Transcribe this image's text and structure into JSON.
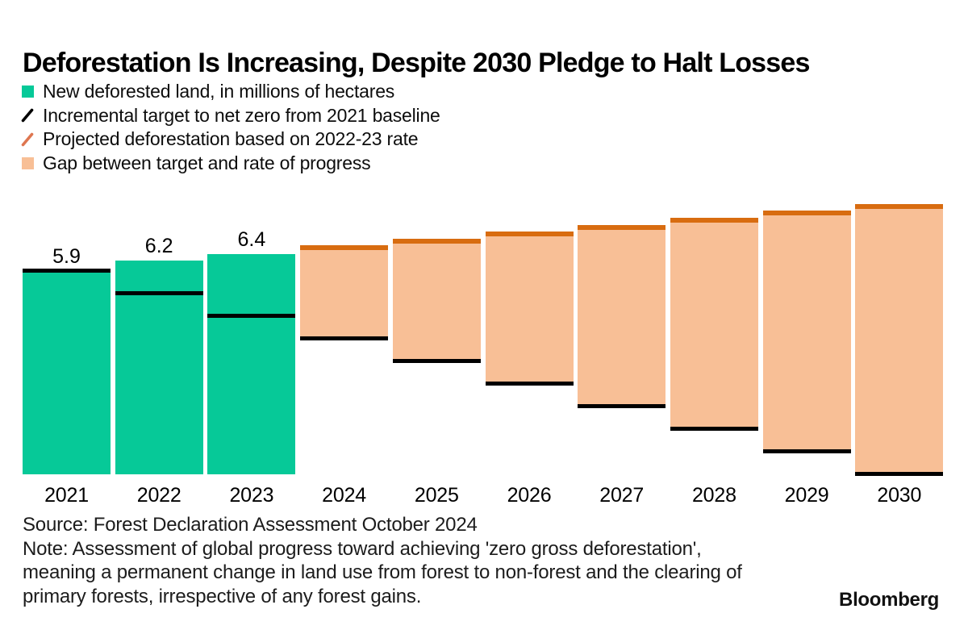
{
  "title": "Deforestation Is Increasing, Despite 2030 Pledge to Halt Losses",
  "legend": {
    "items": [
      {
        "label": "New deforested land, in millions of hectares",
        "marker": "square",
        "color": "#06c998"
      },
      {
        "label": "Incremental target to net zero from 2021 baseline",
        "marker": "slash",
        "color": "#000000"
      },
      {
        "label": "Projected deforestation based on 2022-23 rate",
        "marker": "slash",
        "color": "#de7650"
      },
      {
        "label": "Gap between target and rate of progress",
        "marker": "square",
        "color": "#f8bf96"
      }
    ]
  },
  "chart_data": {
    "type": "bar",
    "title": "Deforestation Is Increasing, Despite 2030 Pledge to Halt Losses",
    "categories": [
      "2021",
      "2022",
      "2023",
      "2024",
      "2025",
      "2026",
      "2027",
      "2028",
      "2029",
      "2030"
    ],
    "series": [
      {
        "name": "New deforested land, in millions of hectares",
        "type": "bar",
        "color": "#06c998",
        "values": [
          5.9,
          6.2,
          6.4,
          null,
          null,
          null,
          null,
          null,
          null,
          null
        ]
      },
      {
        "name": "Incremental target to net zero from 2021 baseline",
        "type": "line-marker",
        "color": "#000000",
        "values": [
          5.9,
          5.24,
          4.59,
          3.93,
          3.28,
          2.62,
          1.97,
          1.31,
          0.66,
          0
        ]
      },
      {
        "name": "Projected deforestation based on 2022-23 rate",
        "type": "line-marker",
        "color": "#d86c10",
        "values": [
          null,
          null,
          null,
          6.6,
          6.8,
          7.0,
          7.2,
          7.4,
          7.6,
          7.8
        ]
      },
      {
        "name": "Gap between target and rate of progress",
        "type": "floating-bar",
        "color": "#f8bf96",
        "ranges": [
          null,
          null,
          null,
          [
            3.93,
            6.6
          ],
          [
            3.28,
            6.8
          ],
          [
            2.62,
            7.0
          ],
          [
            1.97,
            7.2
          ],
          [
            1.31,
            7.4
          ],
          [
            0.66,
            7.6
          ],
          [
            0,
            7.8
          ]
        ]
      }
    ],
    "bar_value_labels": [
      "5.9",
      "6.2",
      "6.4"
    ],
    "xlabel": "",
    "ylabel": "",
    "ylim": [
      0,
      8.2
    ],
    "y_axis_visible": false,
    "grid": false,
    "legend_position": "top-left",
    "unit": "millions of hectares"
  },
  "footer": {
    "source": "Source: Forest Declaration Assessment October 2024",
    "note": "Note: Assessment of global progress toward achieving 'zero gross deforestation', meaning a permanent change in land use from forest to non-forest and the clearing of primary forests, irrespective of any forest gains.",
    "brand": "Bloomberg"
  }
}
